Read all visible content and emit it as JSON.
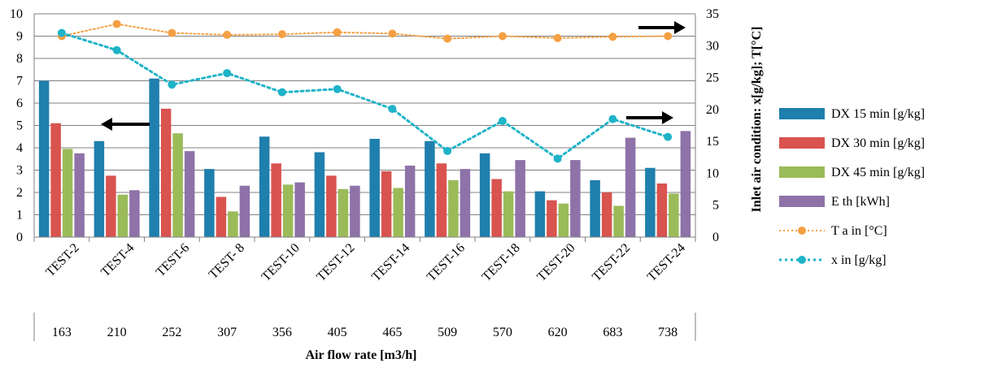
{
  "chart_data": {
    "type": "bar",
    "categories": [
      "TEST-2",
      "TEST-4",
      "TEST-6",
      "TEST- 8",
      "TEST-10",
      "TEST-12",
      "TEST-14",
      "TEST-16",
      "TEST-18",
      "TEST-20",
      "TEST-22",
      "TEST-24"
    ],
    "x_secondary": [
      "163",
      "210",
      "252",
      "307",
      "356",
      "405",
      "465",
      "509",
      "570",
      "620",
      "683",
      "738"
    ],
    "xlabel": "Air flow rate [m3/h]",
    "ylabel": "",
    "y2label": "Inlet air condition: x[g/kg]; T[°C]",
    "ylim": [
      0,
      10
    ],
    "y2lim": [
      0,
      35
    ],
    "yticks": [
      "0",
      "1",
      "2",
      "3",
      "4",
      "5",
      "6",
      "7",
      "8",
      "9",
      "10"
    ],
    "y2ticks": [
      "0",
      "5",
      "10",
      "15",
      "20",
      "25",
      "30",
      "35"
    ],
    "grid": true,
    "legend_position": "right",
    "series": [
      {
        "name": "DX 15 min [g/kg]",
        "type": "bar",
        "axis": "left",
        "color": "#1f7fad",
        "values": [
          7.0,
          4.3,
          7.1,
          3.05,
          4.5,
          3.8,
          4.4,
          4.3,
          3.75,
          2.05,
          2.55,
          3.1
        ]
      },
      {
        "name": "DX 30 min [g/kg]",
        "type": "bar",
        "axis": "left",
        "color": "#d9534f",
        "values": [
          5.1,
          2.75,
          5.75,
          1.8,
          3.3,
          2.75,
          2.95,
          3.3,
          2.6,
          1.65,
          2.0,
          2.4
        ]
      },
      {
        "name": "DX 45 min [g/kg]",
        "type": "bar",
        "axis": "left",
        "color": "#9bbb59",
        "values": [
          3.95,
          1.9,
          4.65,
          1.15,
          2.35,
          2.15,
          2.2,
          2.55,
          2.05,
          1.5,
          1.4,
          1.95
        ]
      },
      {
        "name": "E th [kWh]",
        "type": "bar",
        "axis": "left",
        "color": "#8e72a8",
        "values": [
          3.75,
          2.1,
          3.85,
          2.3,
          2.45,
          2.3,
          3.2,
          3.05,
          3.45,
          3.45,
          4.45,
          4.75
        ]
      },
      {
        "name": "T a in [°C]",
        "type": "line",
        "axis": "right",
        "color": "#f5a043",
        "values": [
          31.5,
          33.4,
          32.0,
          31.7,
          31.8,
          32.1,
          31.9,
          31.1,
          31.5,
          31.2,
          31.4,
          31.5
        ]
      },
      {
        "name": "x in [g/kg]",
        "type": "line",
        "axis": "right",
        "color": "#1fb3c8",
        "values": [
          32.0,
          29.3,
          23.9,
          25.7,
          22.7,
          23.2,
          20.1,
          13.5,
          18.2,
          12.3,
          18.5,
          15.7
        ]
      }
    ],
    "annotations": [
      {
        "type": "arrow",
        "direction": "left",
        "meaning": "left axis"
      },
      {
        "type": "arrow",
        "direction": "right",
        "meaning": "right axis"
      },
      {
        "type": "arrow",
        "direction": "right",
        "meaning": "right axis"
      }
    ]
  }
}
